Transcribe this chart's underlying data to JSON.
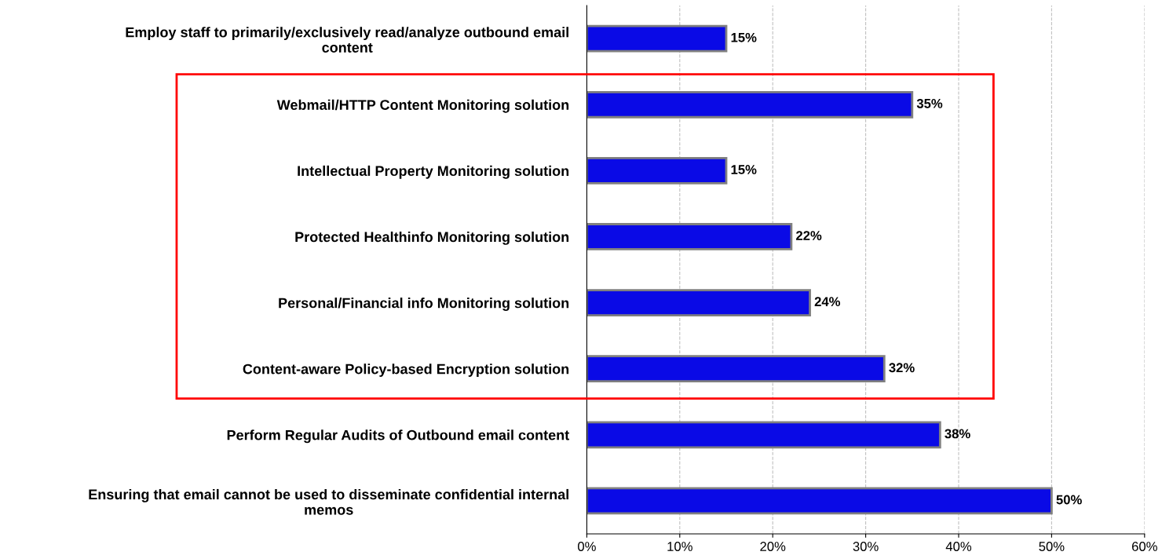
{
  "chart_data": {
    "type": "bar",
    "orientation": "horizontal",
    "categories": [
      "Employ staff to primarily/exclusively read/analyze outbound email\ncontent",
      "Webmail/HTTP Content Monitoring solution",
      "Intellectual Property Monitoring solution",
      "Protected Healthinfo Monitoring solution",
      "Personal/Financial info Monitoring solution",
      "Content-aware Policy-based Encryption solution",
      "Perform Regular Audits of Outbound email content",
      "Ensuring that email cannot be used to disseminate confidential internal\nmemos"
    ],
    "values": [
      15,
      35,
      15,
      22,
      24,
      32,
      38,
      50
    ],
    "value_labels": [
      "15%",
      "35%",
      "15%",
      "22%",
      "24%",
      "32%",
      "38%",
      "50%"
    ],
    "color": "#0a0ae6",
    "xlim": [
      0,
      60
    ],
    "xticks": [
      {
        "value": 0,
        "label": "0%"
      },
      {
        "value": 10,
        "label": "10%"
      },
      {
        "value": 20,
        "label": "20%"
      },
      {
        "value": 30,
        "label": "30%"
      },
      {
        "value": 40,
        "label": "40%"
      },
      {
        "value": 50,
        "label": "50%"
      },
      {
        "value": 60,
        "label": "60%"
      }
    ],
    "grid": "x"
  }
}
